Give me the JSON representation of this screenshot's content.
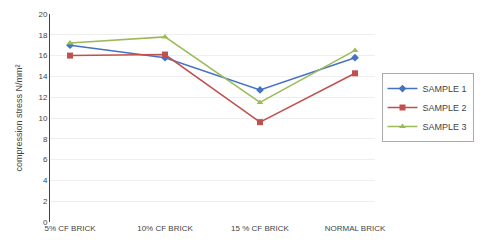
{
  "chart_data": {
    "type": "line",
    "categories": [
      "5% CF BRICK",
      "10% CF BRICK",
      "15 % CF BRICK",
      "NORMAL BRICK"
    ],
    "series": [
      {
        "name": "SAMPLE 1",
        "color": "#4472C4",
        "marker": "diamond",
        "values": [
          17.0,
          15.8,
          12.7,
          15.8
        ]
      },
      {
        "name": "SAMPLE 2",
        "color": "#C0504D",
        "marker": "square",
        "values": [
          16.0,
          16.1,
          9.6,
          14.3
        ]
      },
      {
        "name": "SAMPLE 3",
        "color": "#9BBB59",
        "marker": "triangle",
        "values": [
          17.2,
          17.8,
          11.5,
          16.5
        ]
      }
    ],
    "ylabel": "compression stress N/mm²",
    "ylim": [
      0,
      20
    ],
    "yticks": [
      0,
      2,
      4,
      6,
      8,
      10,
      12,
      14,
      16,
      18,
      20
    ],
    "grid": true,
    "legend": "right"
  }
}
